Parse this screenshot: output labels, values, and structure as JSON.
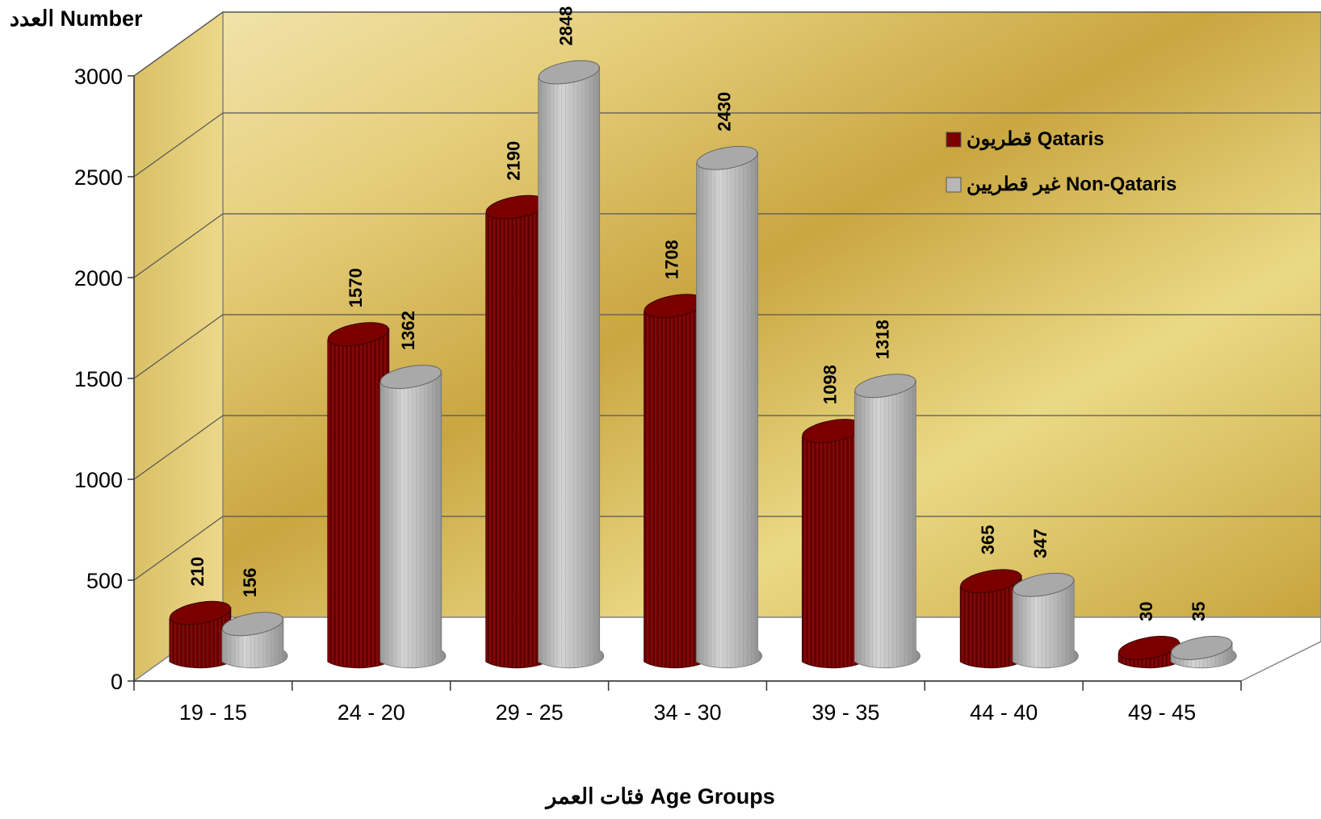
{
  "chart_data": {
    "type": "bar",
    "title": "",
    "ylabel": "العدد Number",
    "xlabel": "فئات العمر Age Groups",
    "ylim": [
      0,
      3000
    ],
    "yticks": [
      0,
      500,
      1000,
      1500,
      2000,
      2500,
      3000
    ],
    "categories": [
      "19 - 15",
      "24 - 20",
      "29 - 25",
      "34 - 30",
      "39 - 35",
      "44 - 40",
      "49 - 45"
    ],
    "series": [
      {
        "name": "قطريون Qataris",
        "color": "#7a0000",
        "values": [
          210,
          1570,
          2190,
          1708,
          1098,
          365,
          30
        ]
      },
      {
        "name": "غير قطريين Non-Qataris",
        "color": "#b8b8b8",
        "values": [
          156,
          1362,
          2848,
          2430,
          1318,
          347,
          35
        ]
      }
    ],
    "legend": "top-right",
    "grid": true,
    "background": "gold gradient"
  }
}
